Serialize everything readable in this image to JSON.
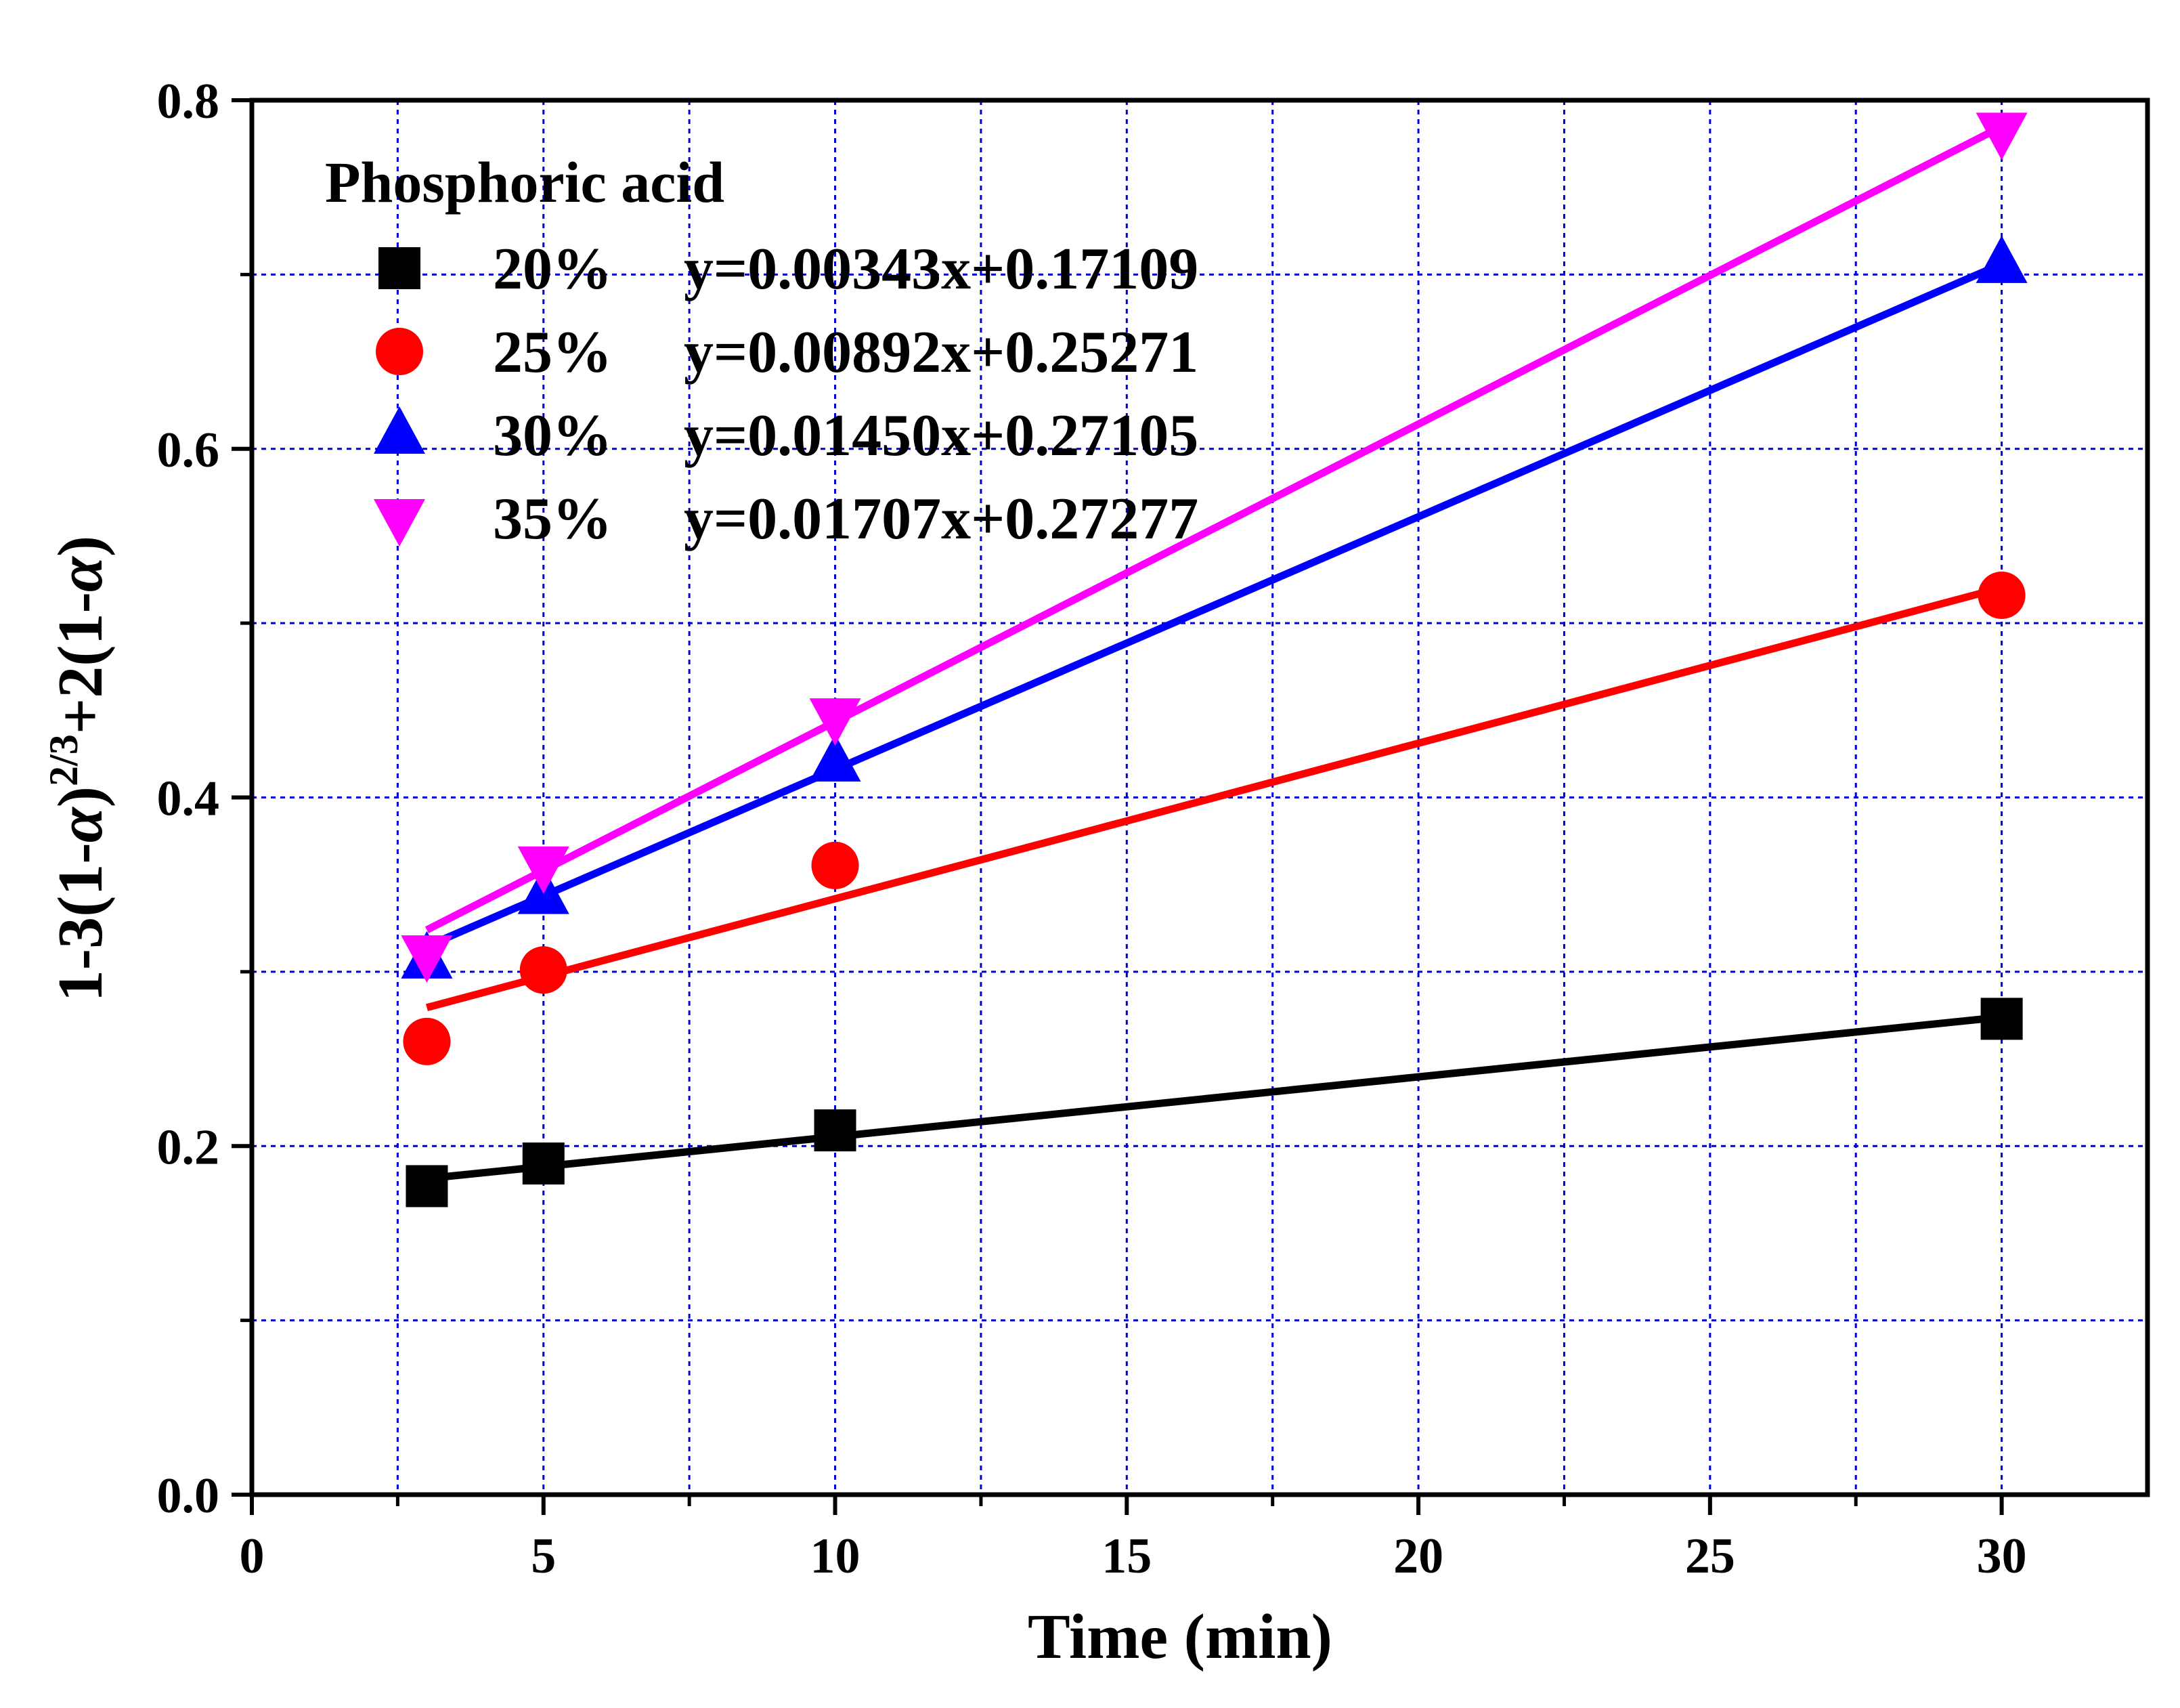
{
  "chart_data": {
    "type": "scatter",
    "title": "",
    "xlabel": "Time (min)",
    "ylabel": {
      "prefix": "1-3(1-",
      "alpha": "α",
      "mid": ")",
      "sup": "2/3",
      "suffix": "+2(1-",
      "alpha2": "α",
      "end": ")"
    },
    "xlim": [
      0,
      32.5
    ],
    "ylim": [
      0,
      0.8
    ],
    "xticks": [
      0,
      5,
      10,
      15,
      20,
      25,
      30
    ],
    "xtick_labels": [
      "0",
      "5",
      "10",
      "15",
      "20",
      "25",
      "30"
    ],
    "yticks": [
      0.0,
      0.2,
      0.4,
      0.6,
      0.8
    ],
    "ytick_labels": [
      "0.0",
      "0.2",
      "0.4",
      "0.6",
      "0.8"
    ],
    "grid": true,
    "legend_position": "top-left",
    "legend_title": "Phosphoric acid",
    "x": [
      3,
      5,
      10,
      30
    ],
    "series": [
      {
        "name": "20%",
        "equation": "y=0.00343x+0.17109",
        "color": "#000000",
        "marker": "square",
        "values": [
          0.177,
          0.19,
          0.209,
          0.273
        ],
        "fit": {
          "slope": 0.00343,
          "intercept": 0.17109
        }
      },
      {
        "name": "25%",
        "equation": "y=0.00892x+0.25271",
        "color": "#ff0000",
        "marker": "circle",
        "values": [
          0.26,
          0.301,
          0.361,
          0.516
        ],
        "fit": {
          "slope": 0.00892,
          "intercept": 0.25271
        }
      },
      {
        "name": "30%",
        "equation": "y=0.01450x+0.27105",
        "color": "#0000ff",
        "marker": "triangle-up",
        "values": [
          0.307,
          0.344,
          0.42,
          0.706
        ],
        "fit": {
          "slope": 0.0145,
          "intercept": 0.27105
        }
      },
      {
        "name": "35%",
        "equation": "y=0.01707x+0.27277",
        "color": "#ff00ff",
        "marker": "triangle-down",
        "values": [
          0.31,
          0.361,
          0.446,
          0.782
        ],
        "fit": {
          "slope": 0.01707,
          "intercept": 0.27277
        }
      }
    ]
  },
  "colors": {
    "grid": "#0000cc",
    "axis": "#000000"
  }
}
